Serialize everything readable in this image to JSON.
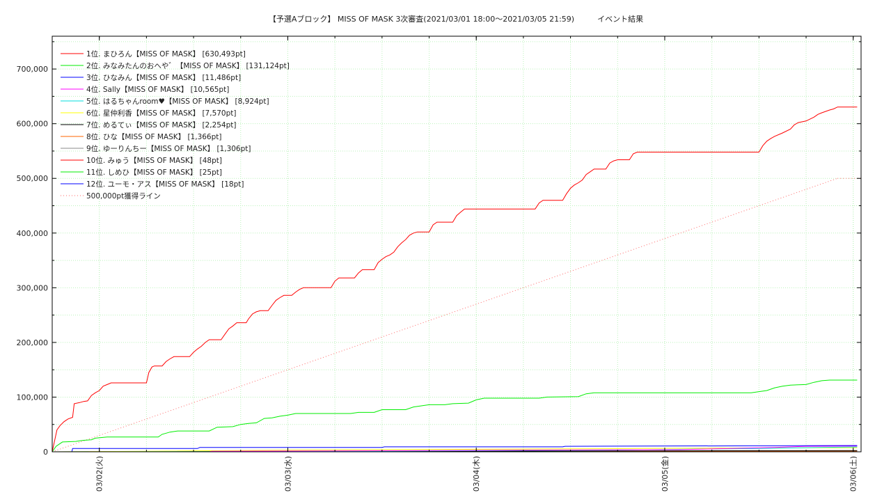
{
  "chart_data": {
    "type": "line",
    "title": "【予選Aブロック】 MISS OF MASK 3次審査(2021/03/01 18:00～2021/03/05 21:59)　　　イベント結果",
    "xlabel": "",
    "ylabel": "",
    "x_unit": "hours since 2021/03/01 18:00",
    "xlim": [
      0,
      103
    ],
    "ylim": [
      0,
      760000
    ],
    "y_ticks": [
      {
        "value": 0,
        "label": "0"
      },
      {
        "value": 100000,
        "label": "100,000"
      },
      {
        "value": 200000,
        "label": "200,000"
      },
      {
        "value": 300000,
        "label": "300,000"
      },
      {
        "value": 400000,
        "label": "400,000"
      },
      {
        "value": 500000,
        "label": "500,000"
      },
      {
        "value": 600000,
        "label": "600,000"
      },
      {
        "value": 700000,
        "label": "700,000"
      }
    ],
    "x_ticks": [
      {
        "value": 6,
        "label": "03/02(火)"
      },
      {
        "value": 30,
        "label": "03/03(水)"
      },
      {
        "value": 54,
        "label": "03/04(木)"
      },
      {
        "value": 78,
        "label": "03/05(金)"
      },
      {
        "value": 102,
        "label": "03/06(土)"
      }
    ],
    "grid": true,
    "legend_position": "top-left",
    "series": [
      {
        "name": "1位. まひろん【MISS OF MASK】 [630,493pt]",
        "color": "#ff0000",
        "points": [
          [
            0,
            0
          ],
          [
            0.3,
            20000
          ],
          [
            0.6,
            40000
          ],
          [
            1,
            48000
          ],
          [
            1.5,
            55000
          ],
          [
            2,
            60000
          ],
          [
            2.6,
            63000
          ],
          [
            2.8,
            88000
          ],
          [
            3.5,
            90000
          ],
          [
            4,
            92000
          ],
          [
            4.5,
            93000
          ],
          [
            5,
            103000
          ],
          [
            5.5,
            108000
          ],
          [
            6,
            112000
          ],
          [
            6.5,
            120000
          ],
          [
            7,
            123000
          ],
          [
            7.5,
            126000
          ],
          [
            12,
            126000
          ],
          [
            12.3,
            145000
          ],
          [
            12.7,
            155000
          ],
          [
            13,
            157000
          ],
          [
            14,
            157000
          ],
          [
            14.5,
            165000
          ],
          [
            15,
            170000
          ],
          [
            15.5,
            174000
          ],
          [
            17.5,
            174000
          ],
          [
            18,
            182000
          ],
          [
            18.5,
            188000
          ],
          [
            19,
            193000
          ],
          [
            19.5,
            200000
          ],
          [
            20,
            205000
          ],
          [
            21.5,
            205000
          ],
          [
            22,
            215000
          ],
          [
            22.5,
            225000
          ],
          [
            23,
            230000
          ],
          [
            23.5,
            236000
          ],
          [
            24.7,
            236000
          ],
          [
            25,
            243000
          ],
          [
            25.5,
            252000
          ],
          [
            26,
            256000
          ],
          [
            26.5,
            258000
          ],
          [
            27.5,
            258000
          ],
          [
            28,
            268000
          ],
          [
            28.5,
            277000
          ],
          [
            29,
            282000
          ],
          [
            29.5,
            286000
          ],
          [
            30.5,
            286000
          ],
          [
            31,
            292000
          ],
          [
            31.5,
            297000
          ],
          [
            32,
            300000
          ],
          [
            35.5,
            300000
          ],
          [
            36,
            312000
          ],
          [
            36.5,
            318000
          ],
          [
            38.5,
            318000
          ],
          [
            39,
            327000
          ],
          [
            39.5,
            333000
          ],
          [
            41,
            333000
          ],
          [
            41.5,
            346000
          ],
          [
            42,
            352000
          ],
          [
            42.5,
            357000
          ],
          [
            43,
            360000
          ],
          [
            43.5,
            365000
          ],
          [
            44,
            375000
          ],
          [
            44.5,
            382000
          ],
          [
            45,
            388000
          ],
          [
            45.5,
            396000
          ],
          [
            46,
            400000
          ],
          [
            46.5,
            402000
          ],
          [
            48,
            402000
          ],
          [
            48.5,
            415000
          ],
          [
            49,
            420000
          ],
          [
            51,
            420000
          ],
          [
            51.5,
            432000
          ],
          [
            52,
            438000
          ],
          [
            52.5,
            444000
          ],
          [
            61.5,
            444000
          ],
          [
            62,
            455000
          ],
          [
            62.5,
            460000
          ],
          [
            65,
            460000
          ],
          [
            65.5,
            472000
          ],
          [
            66,
            482000
          ],
          [
            66.5,
            488000
          ],
          [
            67,
            492000
          ],
          [
            67.5,
            497000
          ],
          [
            68,
            507000
          ],
          [
            68.5,
            512000
          ],
          [
            69,
            517000
          ],
          [
            70.5,
            517000
          ],
          [
            71,
            528000
          ],
          [
            71.5,
            532000
          ],
          [
            72,
            534000
          ],
          [
            73.5,
            534000
          ],
          [
            74,
            545000
          ],
          [
            74.5,
            548000
          ],
          [
            90,
            548000
          ],
          [
            90.5,
            560000
          ],
          [
            91,
            568000
          ],
          [
            91.5,
            573000
          ],
          [
            92,
            577000
          ],
          [
            93,
            583000
          ],
          [
            94,
            590000
          ],
          [
            94.5,
            598000
          ],
          [
            95,
            602000
          ],
          [
            96,
            605000
          ],
          [
            97,
            612000
          ],
          [
            97.5,
            617000
          ],
          [
            98,
            620000
          ],
          [
            99,
            625000
          ],
          [
            99.5,
            627000
          ],
          [
            100,
            630493
          ],
          [
            102.5,
            630493
          ]
        ]
      },
      {
        "name": "2位. みなみたんのおへや゛【MISS OF MASK】 [131,124pt]",
        "color": "#00ee00",
        "points": [
          [
            0,
            0
          ],
          [
            0.5,
            10000
          ],
          [
            1,
            15000
          ],
          [
            1.3,
            18000
          ],
          [
            3,
            19000
          ],
          [
            3.5,
            20000
          ],
          [
            4,
            21000
          ],
          [
            5,
            22000
          ],
          [
            5.5,
            25000
          ],
          [
            7,
            27000
          ],
          [
            13.5,
            27000
          ],
          [
            14,
            32000
          ],
          [
            14.5,
            34000
          ],
          [
            15,
            36000
          ],
          [
            16,
            38000
          ],
          [
            20,
            38000
          ],
          [
            21,
            45000
          ],
          [
            23,
            46000
          ],
          [
            24,
            50000
          ],
          [
            25,
            52000
          ],
          [
            26,
            53000
          ],
          [
            27,
            61000
          ],
          [
            28,
            62000
          ],
          [
            29,
            65000
          ],
          [
            30,
            67000
          ],
          [
            31,
            70000
          ],
          [
            38,
            70000
          ],
          [
            39,
            72000
          ],
          [
            41,
            72000
          ],
          [
            42,
            77000
          ],
          [
            45,
            77000
          ],
          [
            46,
            82000
          ],
          [
            47,
            84000
          ],
          [
            48,
            86000
          ],
          [
            50,
            86000
          ],
          [
            51,
            88000
          ],
          [
            53,
            89000
          ],
          [
            54,
            95000
          ],
          [
            55,
            98000
          ],
          [
            62,
            98000
          ],
          [
            63,
            100000
          ],
          [
            67,
            101000
          ],
          [
            68,
            106000
          ],
          [
            69,
            108000
          ],
          [
            89,
            108000
          ],
          [
            90,
            110000
          ],
          [
            91,
            112000
          ],
          [
            92,
            117000
          ],
          [
            93,
            120000
          ],
          [
            94,
            122000
          ],
          [
            96,
            123000
          ],
          [
            97,
            127000
          ],
          [
            98,
            130000
          ],
          [
            99,
            131124
          ],
          [
            102.5,
            131124
          ]
        ]
      },
      {
        "name": "3位. ひなみん【MISS OF MASK】 [11,486pt]",
        "color": "#0000ff",
        "points": [
          [
            0,
            0
          ],
          [
            2.5,
            0
          ],
          [
            2.6,
            6000
          ],
          [
            18.5,
            6000
          ],
          [
            18.8,
            8000
          ],
          [
            42,
            8000
          ],
          [
            42.3,
            9000
          ],
          [
            65,
            9000
          ],
          [
            65.3,
            10000
          ],
          [
            102.5,
            11486
          ]
        ]
      },
      {
        "name": "4位. Sally【MISS OF MASK】 [10,565pt]",
        "color": "#ff00ff",
        "points": [
          [
            0,
            0
          ],
          [
            20,
            0
          ],
          [
            20.3,
            1000
          ],
          [
            45,
            2000
          ],
          [
            60,
            3000
          ],
          [
            80,
            4000
          ],
          [
            92,
            8000
          ],
          [
            96,
            10000
          ],
          [
            102.5,
            10565
          ]
        ]
      },
      {
        "name": "5位. はるちゃんroom♥【MISS OF MASK】 [8,924pt]",
        "color": "#00dddd",
        "points": [
          [
            0,
            0
          ],
          [
            30,
            500
          ],
          [
            70,
            3000
          ],
          [
            90,
            6000
          ],
          [
            98,
            8000
          ],
          [
            102.5,
            8924
          ]
        ]
      },
      {
        "name": "6位. 星仲利香【MISS OF MASK】 [7,570pt]",
        "color": "#ffff00",
        "points": [
          [
            0,
            0
          ],
          [
            12,
            1000
          ],
          [
            30,
            3000
          ],
          [
            60,
            5000
          ],
          [
            75,
            6000
          ],
          [
            90,
            7000
          ],
          [
            102.5,
            7570
          ]
        ]
      },
      {
        "name": "7位. めるてぃ【MISS OF MASK】 [2,254pt]",
        "color": "#000000",
        "points": [
          [
            0,
            0
          ],
          [
            50,
            1000
          ],
          [
            90,
            2000
          ],
          [
            102.5,
            2254
          ]
        ]
      },
      {
        "name": "8位. ひな【MISS OF MASK】 [1,366pt]",
        "color": "#ff6600",
        "points": [
          [
            0,
            0
          ],
          [
            40,
            600
          ],
          [
            80,
            1200
          ],
          [
            102.5,
            1366
          ]
        ]
      },
      {
        "name": "9位. ゆーりんちー【MISS OF MASK】 [1,306pt]",
        "color": "#888888",
        "points": [
          [
            0,
            0
          ],
          [
            40,
            500
          ],
          [
            80,
            1100
          ],
          [
            102.5,
            1306
          ]
        ]
      },
      {
        "name": "10位. みゅう【MISS OF MASK】 [48pt]",
        "color": "#ff0000",
        "points": [
          [
            0,
            0
          ],
          [
            102.5,
            48
          ]
        ]
      },
      {
        "name": "11位. しめひ【MISS OF MASK】 [25pt]",
        "color": "#00ee00",
        "points": [
          [
            0,
            0
          ],
          [
            102.5,
            25
          ]
        ]
      },
      {
        "name": "12位. ユーモ・アス【MISS OF MASK】 [18pt]",
        "color": "#0000ff",
        "points": [
          [
            0,
            0
          ],
          [
            102.5,
            18
          ]
        ]
      },
      {
        "name": "500,000pt獲得ライン",
        "color": "#ff6666",
        "dashed": true,
        "points": [
          [
            0,
            0
          ],
          [
            100,
            500000
          ]
        ],
        "extend_points": [
          [
            100,
            500000
          ],
          [
            103,
            500000
          ]
        ]
      }
    ]
  }
}
